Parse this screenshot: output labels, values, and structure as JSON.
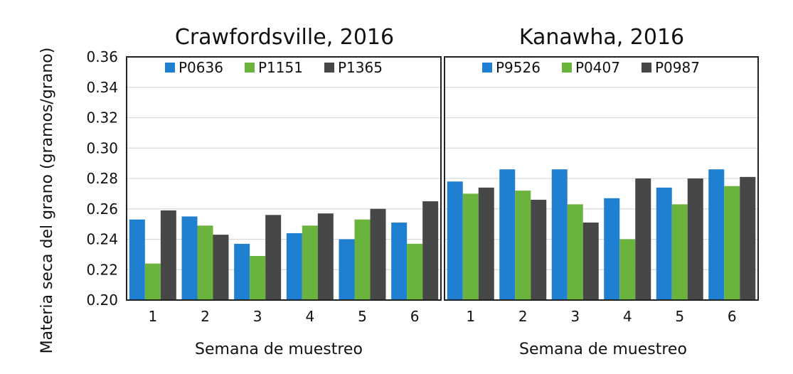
{
  "figure": {
    "ylabel": "Materia seca del grano (gramos/grano)"
  },
  "chart_data": [
    {
      "type": "bar",
      "title": "Crawfordsville, 2016",
      "xlabel": "Semana de muestreo",
      "ylabel": "Materia seca del grano (gramos/grano)",
      "ylim": [
        0.2,
        0.36
      ],
      "yticks": [
        "0.20",
        "0.22",
        "0.24",
        "0.26",
        "0.28",
        "0.30",
        "0.32",
        "0.34",
        "0.36"
      ],
      "categories": [
        "1",
        "2",
        "3",
        "4",
        "5",
        "6"
      ],
      "grid": true,
      "legend": "top",
      "series": [
        {
          "name": "P0636",
          "color": "#1f7fd1",
          "values": [
            0.253,
            0.255,
            0.237,
            0.244,
            0.24,
            0.251
          ]
        },
        {
          "name": "P1151",
          "color": "#6ab43e",
          "values": [
            0.224,
            0.249,
            0.229,
            0.249,
            0.253,
            0.237
          ]
        },
        {
          "name": "P1365",
          "color": "#474747",
          "values": [
            0.259,
            0.243,
            0.256,
            0.257,
            0.26,
            0.265
          ]
        }
      ]
    },
    {
      "type": "bar",
      "title": "Kanawha, 2016",
      "xlabel": "Semana de muestreo",
      "ylabel": "Materia seca del grano (gramos/grano)",
      "ylim": [
        0.2,
        0.36
      ],
      "yticks": [
        "0.20",
        "0.22",
        "0.24",
        "0.26",
        "0.28",
        "0.30",
        "0.32",
        "0.34",
        "0.36"
      ],
      "categories": [
        "1",
        "2",
        "3",
        "4",
        "5",
        "6"
      ],
      "grid": true,
      "legend": "top",
      "series": [
        {
          "name": "P9526",
          "color": "#1f7fd1",
          "values": [
            0.278,
            0.286,
            0.286,
            0.267,
            0.274,
            0.286
          ]
        },
        {
          "name": "P0407",
          "color": "#6ab43e",
          "values": [
            0.27,
            0.272,
            0.263,
            0.24,
            0.263,
            0.275
          ]
        },
        {
          "name": "P0987",
          "color": "#474747",
          "values": [
            0.274,
            0.266,
            0.251,
            0.28,
            0.28,
            0.281
          ]
        }
      ]
    }
  ]
}
